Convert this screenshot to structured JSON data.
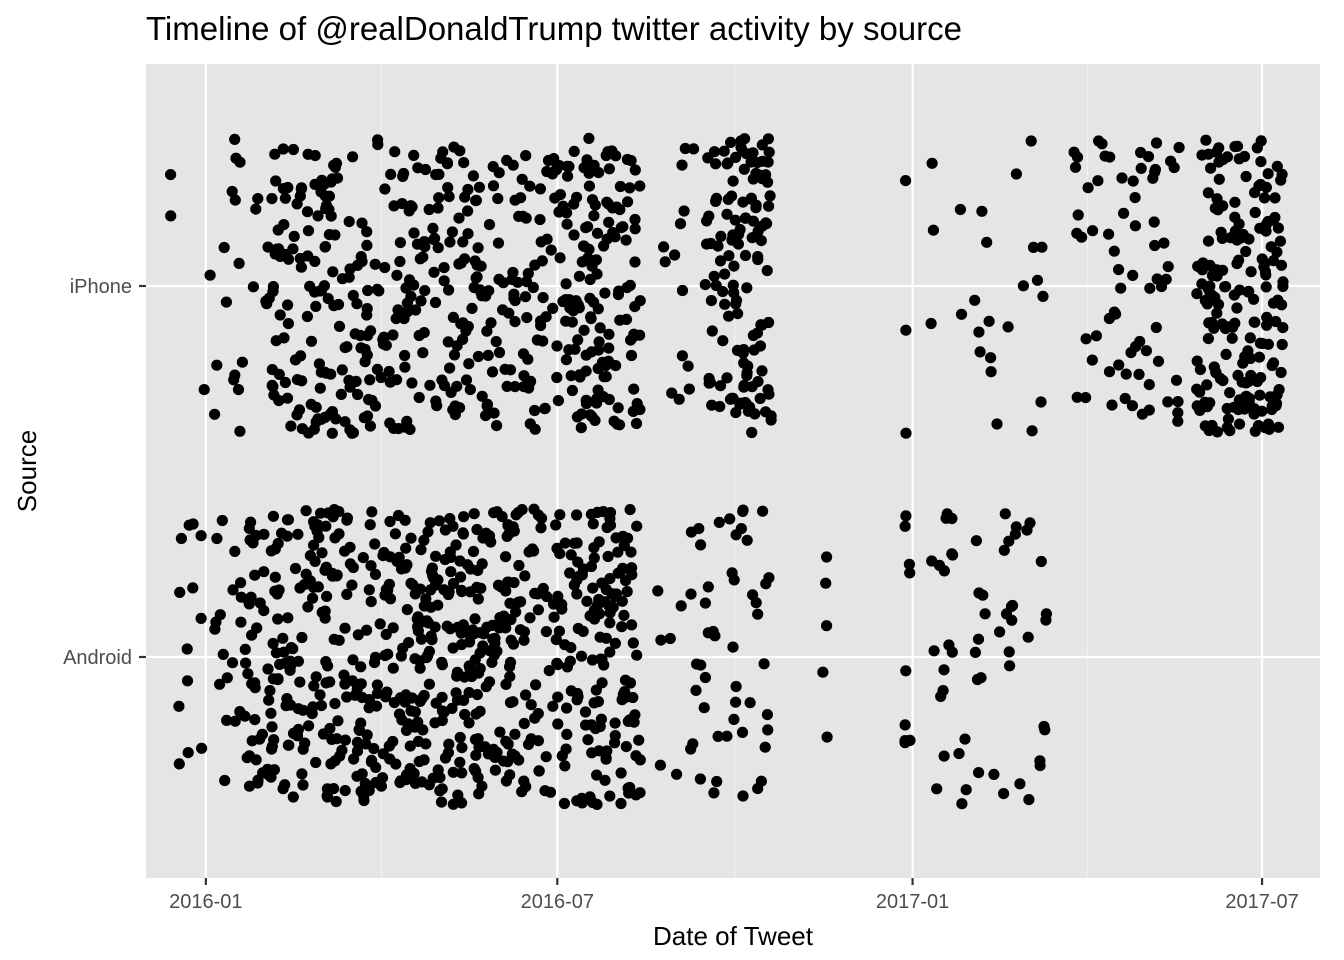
{
  "colors": {
    "panel_bg": "#e5e5e5",
    "grid_major": "#ffffff",
    "grid_minor": "#f2f2f2",
    "point": "#000000",
    "tick_text": "#4d4d4d"
  },
  "chart_data": {
    "type": "scatter",
    "title": "Timeline of @realDonaldTrump twitter activity by source",
    "xlabel": "Date of Tweet",
    "ylabel": "Source",
    "x_axis_type": "date",
    "xlim": [
      "2015-12-01",
      "2017-07-31"
    ],
    "x_ticks": [
      "2016-01-01",
      "2016-07-01",
      "2017-01-01",
      "2017-07-01"
    ],
    "x_tick_labels": [
      "2016-01",
      "2016-07",
      "2017-01",
      "2017-07"
    ],
    "categories": [
      "Android",
      "iPhone"
    ],
    "jitter": "vertical jitter around each category",
    "grid": true,
    "legend": "none",
    "series": [
      {
        "category": "iPhone",
        "segments": [
          {
            "from": "2015-12-13",
            "to": "2015-12-14",
            "count": 2
          },
          {
            "from": "2015-12-29",
            "to": "2016-01-31",
            "count": 20
          },
          {
            "from": "2016-02-01",
            "to": "2016-08-13",
            "count": 520
          },
          {
            "from": "2016-08-25",
            "to": "2016-09-10",
            "count": 14
          },
          {
            "from": "2016-09-15",
            "to": "2016-10-20",
            "count": 130
          },
          {
            "from": "2016-12-28",
            "to": "2016-12-30",
            "count": 3
          },
          {
            "from": "2017-01-10",
            "to": "2017-03-12",
            "count": 24
          },
          {
            "from": "2017-03-25",
            "to": "2017-04-02",
            "count": 10
          },
          {
            "from": "2017-04-03",
            "to": "2017-05-20",
            "count": 60
          },
          {
            "from": "2017-05-28",
            "to": "2017-07-12",
            "count": 190
          }
        ]
      },
      {
        "category": "Android",
        "segments": [
          {
            "from": "2015-12-18",
            "to": "2016-01-01",
            "count": 13
          },
          {
            "from": "2016-01-05",
            "to": "2016-01-20",
            "count": 18
          },
          {
            "from": "2016-01-21",
            "to": "2016-08-13",
            "count": 700
          },
          {
            "from": "2016-08-20",
            "to": "2016-09-10",
            "count": 10
          },
          {
            "from": "2016-09-10",
            "to": "2016-10-20",
            "count": 45
          },
          {
            "from": "2016-11-15",
            "to": "2016-11-18",
            "count": 5
          },
          {
            "from": "2016-12-28",
            "to": "2016-12-31",
            "count": 9
          },
          {
            "from": "2017-01-10",
            "to": "2017-03-12",
            "count": 55
          }
        ]
      }
    ]
  }
}
